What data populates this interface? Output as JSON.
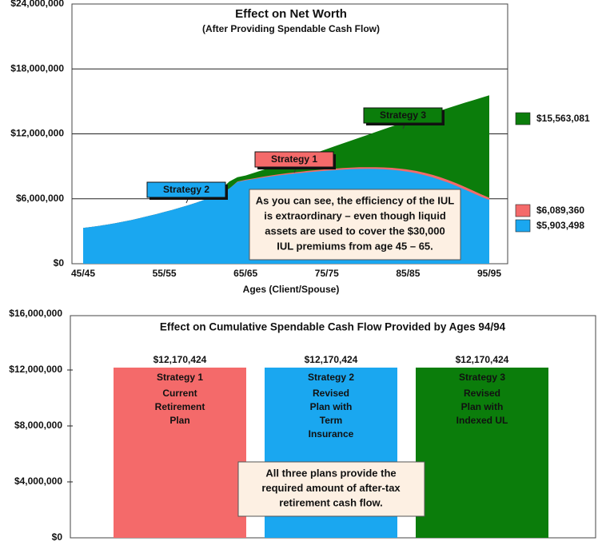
{
  "chart_data": [
    {
      "type": "area",
      "title": "Effect on Net Worth",
      "subtitle": "(After Providing Spendable Cash Flow)",
      "x_label": "Ages (Client/Spouse)",
      "categories": [
        "45/45",
        null,
        null,
        null,
        null,
        null,
        null,
        null,
        null,
        null,
        "55/55",
        null,
        null,
        null,
        null,
        null,
        null,
        null,
        null,
        null,
        "65/65",
        null,
        null,
        null,
        null,
        null,
        null,
        null,
        null,
        null,
        "75/75",
        null,
        null,
        null,
        null,
        null,
        null,
        null,
        null,
        null,
        "85/85",
        null,
        null,
        null,
        null,
        null,
        null,
        null,
        null,
        null,
        "95/95"
      ],
      "ylim": [
        0,
        24000000
      ],
      "yticks": [
        {
          "value": 0,
          "label": "$0"
        },
        {
          "value": 6000000,
          "label": "$6,000,000"
        },
        {
          "value": 12000000,
          "label": "$12,000,000"
        },
        {
          "value": 18000000,
          "label": "$18,000,000"
        },
        {
          "value": 24000000,
          "label": "$24,000,000"
        }
      ],
      "grid": true,
      "legend": "right",
      "series": [
        {
          "name": "$15,563,081",
          "color": "#0b7d0b",
          "values": [
            3300000,
            3400000,
            3500000,
            3620000,
            3750000,
            3900000,
            4050000,
            4220000,
            4400000,
            4580000,
            4780000,
            4980000,
            5200000,
            5420000,
            5660000,
            5920000,
            6200000,
            6900000,
            7600000,
            8000000,
            8150000,
            8390000,
            8630000,
            8870000,
            9110000,
            9350000,
            9590000,
            9830000,
            10070000,
            10330000,
            10600000,
            10860000,
            11120000,
            11380000,
            11640000,
            11900000,
            12160000,
            12420000,
            12680000,
            12940000,
            13200000,
            13440000,
            13680000,
            13920000,
            14160000,
            14400000,
            14640000,
            14880000,
            15100000,
            15330000,
            15563081
          ]
        },
        {
          "name": "$6,089,360",
          "color": "#f46a6a",
          "values": [
            3300000,
            3400000,
            3500000,
            3620000,
            3750000,
            3900000,
            4050000,
            4220000,
            4400000,
            4580000,
            4780000,
            4980000,
            5200000,
            5420000,
            5660000,
            5920000,
            6200000,
            6500000,
            6950000,
            7600000,
            7760000,
            7890000,
            8020000,
            8140000,
            8250000,
            8350000,
            8440000,
            8520000,
            8600000,
            8670000,
            8730000,
            8790000,
            8840000,
            8880000,
            8910000,
            8920000,
            8920000,
            8900000,
            8860000,
            8790000,
            8700000,
            8570000,
            8410000,
            8210000,
            7980000,
            7720000,
            7420000,
            7100000,
            6760000,
            6420000,
            6089360
          ]
        },
        {
          "name": "$5,903,498",
          "color": "#1aa7f0",
          "values": [
            3300000,
            3400000,
            3500000,
            3620000,
            3750000,
            3900000,
            4050000,
            4220000,
            4400000,
            4580000,
            4780000,
            4980000,
            5200000,
            5420000,
            5660000,
            5920000,
            6200000,
            6500000,
            6950000,
            7550000,
            7700000,
            7820000,
            7940000,
            8050000,
            8150000,
            8240000,
            8320000,
            8400000,
            8470000,
            8540000,
            8600000,
            8650000,
            8700000,
            8740000,
            8760000,
            8770000,
            8760000,
            8730000,
            8680000,
            8600000,
            8500000,
            8360000,
            8190000,
            7980000,
            7740000,
            7470000,
            7170000,
            6850000,
            6510000,
            6180000,
            5903498
          ]
        }
      ],
      "annotations": [
        {
          "text": "Strategy 2",
          "color": "#1aa7f0"
        },
        {
          "text": "Strategy 1",
          "color": "#f46a6a"
        },
        {
          "text": "Strategy 3",
          "color": "#0b7d0b"
        }
      ],
      "note": [
        "As you can see, the efficiency of the IUL",
        "is extraordinary – even though liquid",
        "assets are used to cover the $30,000",
        "IUL premiums from age 45 – 65."
      ]
    },
    {
      "type": "bar",
      "title": "Effect on Cumulative Spendable Cash Flow Provided by Ages 94/94",
      "categories": [
        "Strategy 1",
        "Strategy 2",
        "Strategy 3"
      ],
      "descriptions": [
        [
          "Current",
          "Retirement",
          "Plan"
        ],
        [
          "Revised",
          "Plan with",
          "Term",
          "Insurance"
        ],
        [
          "Revised",
          "Plan with",
          "Indexed UL"
        ]
      ],
      "values": [
        12170424,
        12170424,
        12170424
      ],
      "value_labels": [
        "$12,170,424",
        "$12,170,424",
        "$12,170,424"
      ],
      "colors": [
        "#f46a6a",
        "#1aa7f0",
        "#0b7d0b"
      ],
      "ylim": [
        0,
        16000000
      ],
      "yticks": [
        {
          "value": 0,
          "label": "$0"
        },
        {
          "value": 4000000,
          "label": "$4,000,000"
        },
        {
          "value": 8000000,
          "label": "$8,000,000"
        },
        {
          "value": 12000000,
          "label": "$12,000,000"
        },
        {
          "value": 16000000,
          "label": "$16,000,000"
        }
      ],
      "grid": false,
      "note": [
        "All three plans provide the",
        "required amount of after-tax",
        "retirement cash flow."
      ]
    }
  ]
}
